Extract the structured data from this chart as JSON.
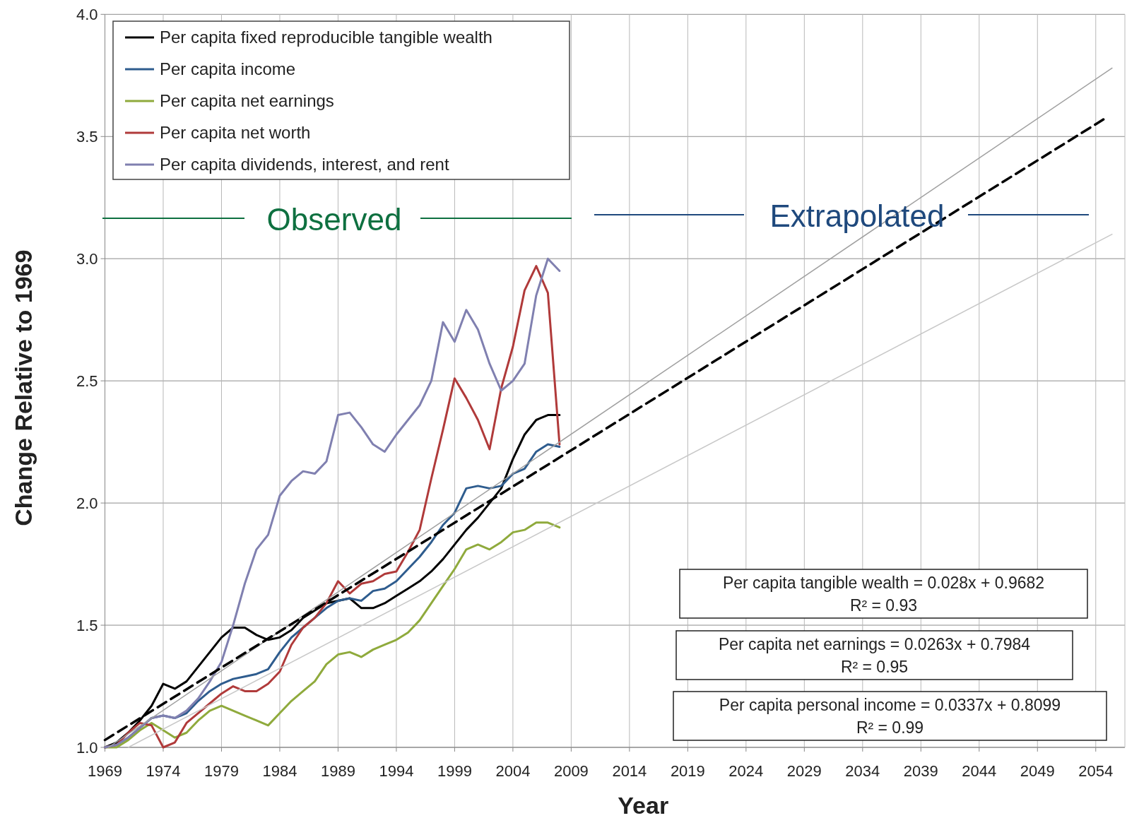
{
  "chart_data": {
    "type": "line",
    "xlabel": "Year",
    "ylabel": "Change Relative to 1969",
    "xlim": [
      1969,
      2056.5
    ],
    "ylim": [
      1,
      4
    ],
    "xticks": [
      1969,
      1974,
      1979,
      1984,
      1989,
      1994,
      1999,
      2004,
      2009,
      2014,
      2019,
      2024,
      2029,
      2034,
      2039,
      2044,
      2049,
      2054
    ],
    "yticks": [
      {
        "value": 1,
        "label": "1.0"
      },
      {
        "value": 1.5,
        "label": "1.5"
      },
      {
        "value": 2,
        "label": "2.0"
      },
      {
        "value": 2.5,
        "label": "2.5"
      },
      {
        "value": 3,
        "label": "3.0"
      },
      {
        "value": 3.5,
        "label": "3.5"
      },
      {
        "value": 4,
        "label": "4.0"
      }
    ],
    "grid": true,
    "legend": "top left",
    "line_style": "solid",
    "marker": "none",
    "x": [
      1969,
      1970,
      1971,
      1972,
      1973,
      1974,
      1975,
      1976,
      1977,
      1978,
      1979,
      1980,
      1981,
      1982,
      1983,
      1984,
      1985,
      1986,
      1987,
      1988,
      1989,
      1990,
      1991,
      1992,
      1993,
      1994,
      1995,
      1996,
      1997,
      1998,
      1999,
      2000,
      2001,
      2002,
      2003,
      2004,
      2005,
      2006,
      2007,
      2008
    ],
    "series": [
      {
        "name": "Per capita fixed reproducible tangible wealth",
        "color": "#000000",
        "values": [
          1.0,
          1.02,
          1.06,
          1.11,
          1.17,
          1.26,
          1.24,
          1.27,
          1.33,
          1.39,
          1.45,
          1.49,
          1.49,
          1.46,
          1.44,
          1.45,
          1.48,
          1.53,
          1.56,
          1.59,
          1.6,
          1.61,
          1.57,
          1.57,
          1.59,
          1.62,
          1.65,
          1.68,
          1.72,
          1.77,
          1.83,
          1.89,
          1.94,
          2.0,
          2.06,
          2.18,
          2.28,
          2.34,
          2.36,
          2.36
        ]
      },
      {
        "name": "Per capita income",
        "color": "#2e5c8e",
        "values": [
          1.0,
          1.01,
          1.04,
          1.08,
          1.12,
          1.13,
          1.12,
          1.14,
          1.19,
          1.23,
          1.26,
          1.28,
          1.29,
          1.3,
          1.32,
          1.39,
          1.45,
          1.49,
          1.53,
          1.57,
          1.6,
          1.61,
          1.6,
          1.64,
          1.65,
          1.68,
          1.73,
          1.78,
          1.84,
          1.91,
          1.96,
          2.06,
          2.07,
          2.06,
          2.07,
          2.12,
          2.14,
          2.21,
          2.24,
          2.23
        ]
      },
      {
        "name": "Per capita net earnings",
        "color": "#8faa3c",
        "values": [
          1.0,
          1.0,
          1.03,
          1.07,
          1.1,
          1.07,
          1.04,
          1.06,
          1.11,
          1.15,
          1.17,
          1.15,
          1.13,
          1.11,
          1.09,
          1.14,
          1.19,
          1.23,
          1.27,
          1.34,
          1.38,
          1.39,
          1.37,
          1.4,
          1.42,
          1.44,
          1.47,
          1.52,
          1.59,
          1.66,
          1.73,
          1.81,
          1.83,
          1.81,
          1.84,
          1.88,
          1.89,
          1.92,
          1.92,
          1.9
        ]
      },
      {
        "name": "Per capita net worth",
        "color": "#b03a3a",
        "values": [
          1.0,
          1.01,
          1.06,
          1.1,
          1.09,
          1.0,
          1.02,
          1.1,
          1.14,
          1.18,
          1.22,
          1.25,
          1.23,
          1.23,
          1.26,
          1.31,
          1.42,
          1.49,
          1.53,
          1.59,
          1.68,
          1.63,
          1.67,
          1.68,
          1.71,
          1.72,
          1.8,
          1.89,
          2.1,
          2.3,
          2.51,
          2.43,
          2.34,
          2.22,
          2.47,
          2.64,
          2.87,
          2.97,
          2.86,
          2.24
        ]
      },
      {
        "name": "Per capita dividends, interest, and rent",
        "color": "#8080b0",
        "values": [
          1.0,
          1.01,
          1.04,
          1.08,
          1.12,
          1.13,
          1.12,
          1.15,
          1.2,
          1.27,
          1.35,
          1.5,
          1.67,
          1.81,
          1.87,
          2.03,
          2.09,
          2.13,
          2.12,
          2.17,
          2.36,
          2.37,
          2.31,
          2.24,
          2.21,
          2.28,
          2.34,
          2.4,
          2.5,
          2.74,
          2.66,
          2.79,
          2.71,
          2.57,
          2.46,
          2.5,
          2.57,
          2.85,
          3.0,
          2.95
        ]
      },
      {
        "color": "#a0a0a0",
        "x": [
          1969.3,
          2055.4
        ],
        "values": [
          1.0,
          3.78
        ]
      },
      {
        "color": "#c8c8c8",
        "x": [
          1971,
          2055.4
        ],
        "values": [
          1.0,
          3.1
        ]
      },
      {
        "color": "#000000",
        "line_style": "dashed",
        "x": [
          1969,
          2055
        ],
        "values": [
          1.03,
          3.58
        ]
      }
    ],
    "annotations": [
      "Observed",
      "Extrapolated",
      "Per capita tangible wealth = 0.028x + 0.9682\nR² = 0.93",
      "Per capita net earnings = 0.0263x + 0.7984\nR² = 0.95",
      "Per capita personal income = 0.0337x + 0.8099\nR² = 0.99"
    ]
  }
}
